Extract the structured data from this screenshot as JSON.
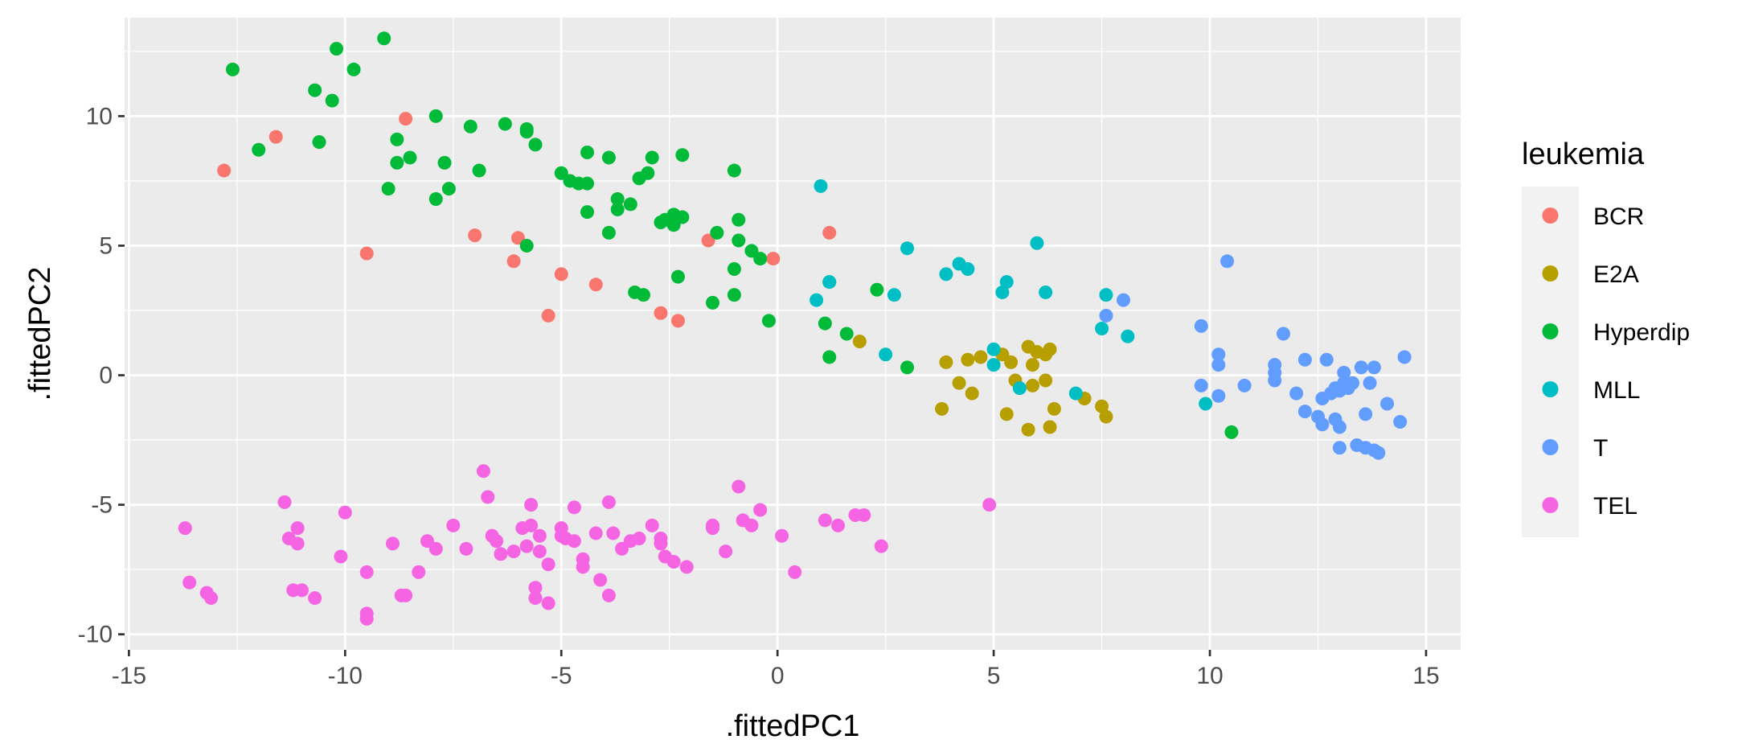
{
  "chart_data": {
    "type": "scatter",
    "xlabel": ".fittedPC1",
    "ylabel": ".fittedPC2",
    "xlim": [
      -15.1,
      15.8
    ],
    "ylim": [
      -10.6,
      13.8
    ],
    "x_ticks": [
      -15,
      -10,
      -5,
      0,
      5,
      10,
      15
    ],
    "y_ticks": [
      -10,
      -5,
      0,
      5,
      10
    ],
    "x_tick_labels": [
      "-15",
      "-10",
      "-5",
      "0",
      "5",
      "10",
      "15"
    ],
    "y_tick_labels": [
      "-10",
      "-5",
      "0",
      "5",
      "10"
    ],
    "grid": true,
    "legend": {
      "title": "leukemia",
      "position": "right"
    },
    "series": [
      {
        "name": "BCR",
        "color": "#F8766D",
        "points": [
          [
            -12.8,
            7.9
          ],
          [
            -11.6,
            9.2
          ],
          [
            -8.6,
            9.9
          ],
          [
            -7.0,
            5.4
          ],
          [
            -6.1,
            4.4
          ],
          [
            -6.0,
            5.3
          ],
          [
            -5.0,
            3.9
          ],
          [
            -5.3,
            2.3
          ],
          [
            -9.5,
            4.7
          ],
          [
            -4.2,
            3.5
          ],
          [
            -2.7,
            2.4
          ],
          [
            -2.3,
            2.1
          ],
          [
            -1.6,
            5.2
          ],
          [
            -0.1,
            4.5
          ],
          [
            1.2,
            5.5
          ]
        ]
      },
      {
        "name": "E2A",
        "color": "#B79F00",
        "points": [
          [
            1.9,
            1.3
          ],
          [
            3.9,
            0.5
          ],
          [
            3.8,
            -1.3
          ],
          [
            4.2,
            -0.3
          ],
          [
            4.4,
            0.6
          ],
          [
            4.5,
            -0.7
          ],
          [
            4.7,
            0.7
          ],
          [
            5.2,
            0.8
          ],
          [
            5.3,
            -1.5
          ],
          [
            5.4,
            0.5
          ],
          [
            5.5,
            -0.2
          ],
          [
            5.8,
            1.1
          ],
          [
            5.9,
            -0.4
          ],
          [
            6.0,
            0.9
          ],
          [
            6.2,
            0.8
          ],
          [
            6.3,
            1.0
          ],
          [
            5.8,
            -2.1
          ],
          [
            6.3,
            -2.0
          ],
          [
            6.4,
            -1.3
          ],
          [
            6.2,
            -0.2
          ],
          [
            7.1,
            -0.9
          ],
          [
            7.5,
            -1.2
          ],
          [
            7.6,
            -1.6
          ],
          [
            5.9,
            0.4
          ]
        ]
      },
      {
        "name": "Hyperdip",
        "color": "#00BA38",
        "points": [
          [
            -12.6,
            11.8
          ],
          [
            -9.1,
            13.0
          ],
          [
            -10.2,
            12.6
          ],
          [
            -9.8,
            11.8
          ],
          [
            -10.7,
            11.0
          ],
          [
            -10.3,
            10.6
          ],
          [
            -12.0,
            8.7
          ],
          [
            -10.6,
            9.0
          ],
          [
            -8.8,
            9.1
          ],
          [
            -8.8,
            8.2
          ],
          [
            -8.5,
            8.4
          ],
          [
            -7.9,
            10.0
          ],
          [
            -7.7,
            8.2
          ],
          [
            -7.6,
            7.2
          ],
          [
            -7.9,
            6.8
          ],
          [
            -9.0,
            7.2
          ],
          [
            -7.1,
            9.6
          ],
          [
            -6.9,
            7.9
          ],
          [
            -6.3,
            9.7
          ],
          [
            -5.8,
            9.5
          ],
          [
            -5.8,
            9.4
          ],
          [
            -5.6,
            8.9
          ],
          [
            -5.8,
            5.0
          ],
          [
            -5.0,
            7.8
          ],
          [
            -4.8,
            7.5
          ],
          [
            -4.6,
            7.4
          ],
          [
            -4.4,
            7.4
          ],
          [
            -4.4,
            8.6
          ],
          [
            -4.4,
            6.3
          ],
          [
            -3.9,
            8.4
          ],
          [
            -3.9,
            5.5
          ],
          [
            -3.7,
            6.8
          ],
          [
            -3.7,
            6.4
          ],
          [
            -3.4,
            6.6
          ],
          [
            -3.2,
            7.6
          ],
          [
            -3.0,
            7.8
          ],
          [
            -2.9,
            8.4
          ],
          [
            -3.3,
            3.2
          ],
          [
            -3.1,
            3.1
          ],
          [
            -2.7,
            5.9
          ],
          [
            -2.6,
            6.0
          ],
          [
            -2.4,
            6.2
          ],
          [
            -2.4,
            5.8
          ],
          [
            -2.2,
            6.1
          ],
          [
            -2.2,
            8.5
          ],
          [
            -1.4,
            5.5
          ],
          [
            -1.5,
            2.8
          ],
          [
            -2.3,
            3.8
          ],
          [
            -1.0,
            7.9
          ],
          [
            -0.9,
            6.0
          ],
          [
            -0.9,
            5.2
          ],
          [
            -1.0,
            4.1
          ],
          [
            -1.0,
            3.1
          ],
          [
            -0.6,
            4.8
          ],
          [
            -0.4,
            4.5
          ],
          [
            -0.2,
            2.1
          ],
          [
            1.2,
            3.6
          ],
          [
            1.1,
            2.0
          ],
          [
            1.2,
            0.7
          ],
          [
            1.6,
            1.6
          ],
          [
            2.3,
            3.3
          ],
          [
            3.0,
            0.3
          ],
          [
            10.5,
            -2.2
          ]
        ]
      },
      {
        "name": "MLL",
        "color": "#00BFC4",
        "points": [
          [
            1.0,
            7.3
          ],
          [
            0.9,
            2.9
          ],
          [
            1.2,
            3.6
          ],
          [
            2.5,
            0.8
          ],
          [
            2.7,
            3.1
          ],
          [
            3.0,
            4.9
          ],
          [
            3.9,
            3.9
          ],
          [
            4.2,
            4.3
          ],
          [
            4.4,
            4.1
          ],
          [
            5.0,
            1.0
          ],
          [
            5.0,
            0.4
          ],
          [
            5.2,
            3.2
          ],
          [
            5.3,
            3.6
          ],
          [
            5.6,
            -0.5
          ],
          [
            6.0,
            5.1
          ],
          [
            6.2,
            3.2
          ],
          [
            6.9,
            -0.7
          ],
          [
            7.5,
            1.8
          ],
          [
            7.6,
            3.1
          ],
          [
            8.1,
            1.5
          ],
          [
            9.9,
            -1.1
          ]
        ]
      },
      {
        "name": "T",
        "color": "#619CFF",
        "points": [
          [
            7.6,
            2.3
          ],
          [
            8.0,
            2.9
          ],
          [
            9.8,
            1.9
          ],
          [
            9.8,
            -0.4
          ],
          [
            10.2,
            0.8
          ],
          [
            10.2,
            0.4
          ],
          [
            10.2,
            -0.8
          ],
          [
            10.4,
            4.4
          ],
          [
            10.8,
            -0.4
          ],
          [
            11.5,
            0.4
          ],
          [
            11.5,
            0.1
          ],
          [
            11.5,
            -0.2
          ],
          [
            11.7,
            1.6
          ],
          [
            12.0,
            -0.7
          ],
          [
            12.2,
            0.6
          ],
          [
            12.2,
            -1.4
          ],
          [
            12.5,
            -1.6
          ],
          [
            12.6,
            -1.9
          ],
          [
            12.6,
            -0.9
          ],
          [
            12.7,
            0.6
          ],
          [
            12.8,
            -0.7
          ],
          [
            12.9,
            -1.7
          ],
          [
            12.9,
            -0.5
          ],
          [
            13.0,
            -2.0
          ],
          [
            13.0,
            -0.6
          ],
          [
            13.0,
            -2.8
          ],
          [
            13.1,
            -0.3
          ],
          [
            13.1,
            0.1
          ],
          [
            13.2,
            -0.5
          ],
          [
            13.3,
            -0.3
          ],
          [
            13.4,
            -2.7
          ],
          [
            13.5,
            0.3
          ],
          [
            13.6,
            -1.5
          ],
          [
            13.6,
            -2.8
          ],
          [
            13.7,
            -0.3
          ],
          [
            13.8,
            0.3
          ],
          [
            13.8,
            -2.9
          ],
          [
            13.9,
            -3.0
          ],
          [
            14.1,
            -1.1
          ],
          [
            14.4,
            -1.8
          ],
          [
            14.5,
            0.7
          ]
        ]
      },
      {
        "name": "TEL",
        "color": "#F564E3",
        "points": [
          [
            -13.7,
            -5.9
          ],
          [
            -13.6,
            -8.0
          ],
          [
            -13.2,
            -8.4
          ],
          [
            -13.1,
            -8.6
          ],
          [
            -11.4,
            -4.9
          ],
          [
            -11.3,
            -6.3
          ],
          [
            -11.1,
            -5.9
          ],
          [
            -11.1,
            -6.5
          ],
          [
            -11.2,
            -8.3
          ],
          [
            -11.0,
            -8.3
          ],
          [
            -10.7,
            -8.6
          ],
          [
            -10.1,
            -7.0
          ],
          [
            -10.0,
            -5.3
          ],
          [
            -9.5,
            -7.6
          ],
          [
            -9.5,
            -9.2
          ],
          [
            -9.5,
            -9.4
          ],
          [
            -8.9,
            -6.5
          ],
          [
            -8.7,
            -8.5
          ],
          [
            -8.6,
            -8.5
          ],
          [
            -8.3,
            -7.6
          ],
          [
            -8.1,
            -6.4
          ],
          [
            -7.9,
            -6.7
          ],
          [
            -7.5,
            -5.8
          ],
          [
            -7.2,
            -6.7
          ],
          [
            -6.8,
            -3.7
          ],
          [
            -6.7,
            -4.7
          ],
          [
            -6.6,
            -6.2
          ],
          [
            -6.5,
            -6.4
          ],
          [
            -6.4,
            -6.9
          ],
          [
            -6.1,
            -6.8
          ],
          [
            -5.9,
            -5.9
          ],
          [
            -5.8,
            -6.6
          ],
          [
            -5.7,
            -5.0
          ],
          [
            -5.7,
            -5.8
          ],
          [
            -5.6,
            -8.2
          ],
          [
            -5.6,
            -8.6
          ],
          [
            -5.5,
            -6.2
          ],
          [
            -5.5,
            -6.8
          ],
          [
            -5.3,
            -7.3
          ],
          [
            -5.3,
            -8.8
          ],
          [
            -5.0,
            -5.9
          ],
          [
            -5.0,
            -6.2
          ],
          [
            -4.9,
            -6.3
          ],
          [
            -4.7,
            -6.4
          ],
          [
            -4.7,
            -5.1
          ],
          [
            -4.5,
            -7.1
          ],
          [
            -4.5,
            -7.4
          ],
          [
            -4.2,
            -6.1
          ],
          [
            -4.1,
            -7.9
          ],
          [
            -3.9,
            -4.9
          ],
          [
            -3.8,
            -6.1
          ],
          [
            -3.9,
            -8.5
          ],
          [
            -3.6,
            -6.7
          ],
          [
            -3.4,
            -6.4
          ],
          [
            -3.2,
            -6.3
          ],
          [
            -2.9,
            -5.8
          ],
          [
            -2.7,
            -6.3
          ],
          [
            -2.7,
            -6.5
          ],
          [
            -2.6,
            -7.0
          ],
          [
            -2.4,
            -7.2
          ],
          [
            -2.1,
            -7.4
          ],
          [
            -1.5,
            -5.8
          ],
          [
            -1.5,
            -5.9
          ],
          [
            -1.2,
            -6.8
          ],
          [
            -0.9,
            -4.3
          ],
          [
            -0.8,
            -5.6
          ],
          [
            -0.6,
            -5.8
          ],
          [
            -0.4,
            -5.2
          ],
          [
            0.1,
            -6.2
          ],
          [
            0.4,
            -7.6
          ],
          [
            1.1,
            -5.6
          ],
          [
            1.4,
            -5.8
          ],
          [
            1.8,
            -5.4
          ],
          [
            2.0,
            -5.4
          ],
          [
            2.4,
            -6.6
          ],
          [
            4.9,
            -5.0
          ]
        ]
      }
    ]
  }
}
